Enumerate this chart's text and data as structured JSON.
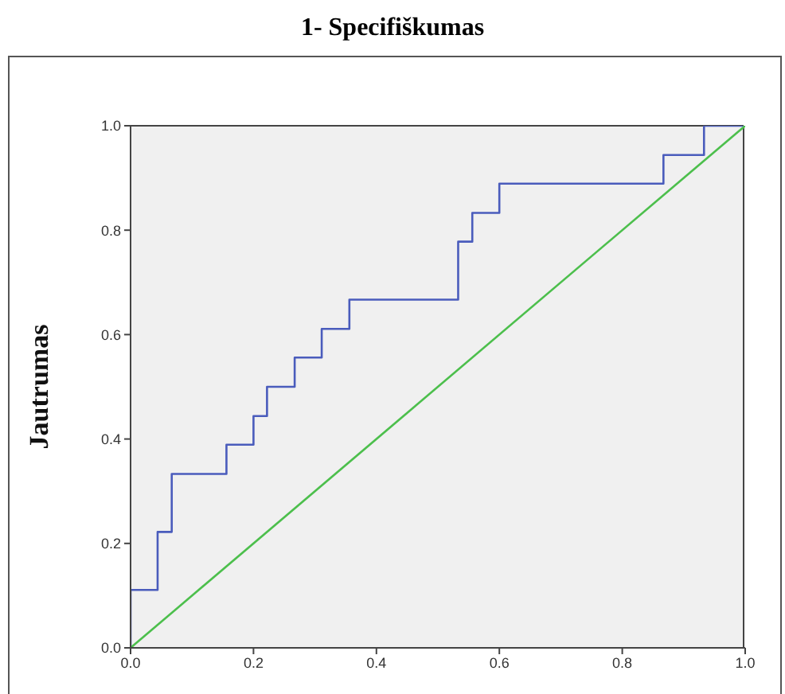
{
  "chart_data": {
    "type": "line",
    "title": "1- Specifiškumas",
    "ylabel": "Jautrumas",
    "xlim": [
      0,
      1
    ],
    "ylim": [
      0,
      1
    ],
    "xticks": [
      {
        "value": 0,
        "label": "0.0"
      },
      {
        "value": 0.2,
        "label": "0.2"
      },
      {
        "value": 0.4,
        "label": "0.4"
      },
      {
        "value": 0.6,
        "label": "0.6"
      },
      {
        "value": 0.8,
        "label": "0.8"
      },
      {
        "value": 1,
        "label": "1.0"
      }
    ],
    "yticks": [
      {
        "value": 0,
        "label": "0.0"
      },
      {
        "value": 0.2,
        "label": "0.2"
      },
      {
        "value": 0.4,
        "label": "0.4"
      },
      {
        "value": 0.6,
        "label": "0.6"
      },
      {
        "value": 0.8,
        "label": "0.8"
      },
      {
        "value": 1,
        "label": "1.0"
      }
    ],
    "grid": false,
    "marker": "none",
    "line_style": "solid",
    "series": [
      {
        "type": "step",
        "color": "#4a5cbc",
        "x": [
          0,
          0,
          0.044,
          0.067,
          0.156,
          0.2,
          0.222,
          0.267,
          0.311,
          0.356,
          0.533,
          0.556,
          0.6,
          0.867,
          0.933,
          1
        ],
        "values": [
          0,
          0.111,
          0.222,
          0.333,
          0.389,
          0.444,
          0.5,
          0.556,
          0.611,
          0.667,
          0.778,
          0.833,
          0.889,
          0.944,
          1,
          1
        ]
      },
      {
        "color": "#4cbf4c",
        "x": [
          0,
          1
        ],
        "values": [
          0,
          1
        ]
      }
    ]
  }
}
